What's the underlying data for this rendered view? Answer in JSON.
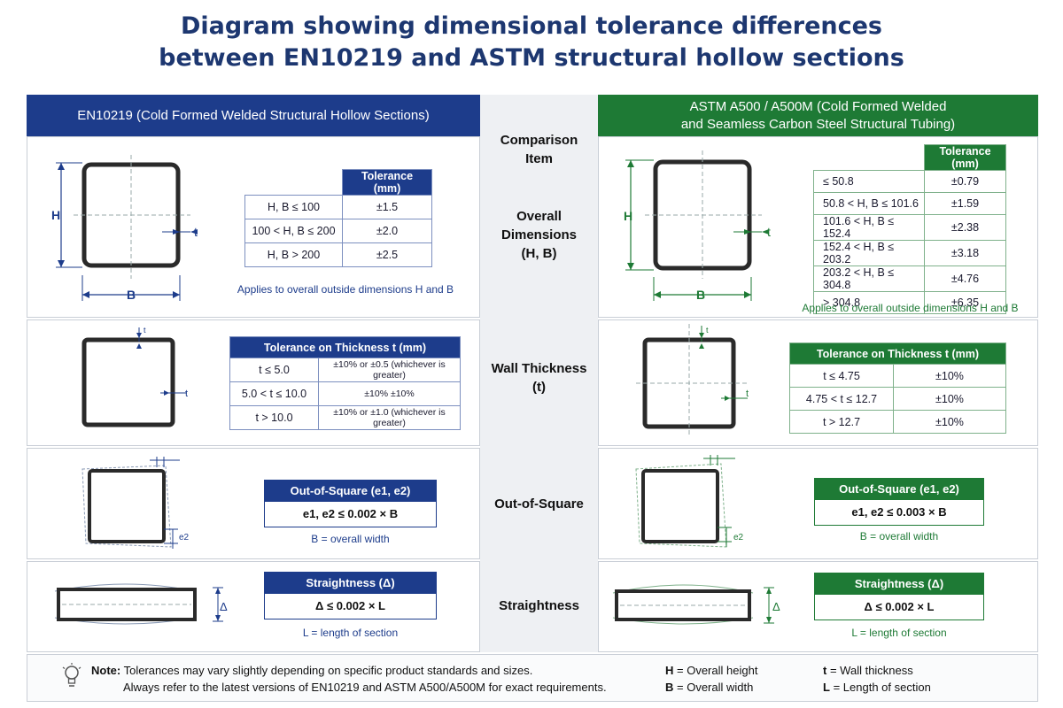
{
  "title": {
    "line1": "Diagram showing dimensional tolerance differences",
    "line2": "between EN10219 and ASTM structural hollow sections"
  },
  "headers": {
    "en": "EN10219 (Cold Formed Welded Structural Hollow Sections)",
    "astm_line1": "ASTM A500 / A500M (Cold Formed Welded",
    "astm_line2": "and Seamless Carbon Steel Structural Tubing)"
  },
  "middle": {
    "comparison_item_line1": "Comparison",
    "comparison_item_line2": "Item",
    "overall_line1": "Overall",
    "overall_line2": "Dimensions",
    "overall_line3": "(H, B)",
    "wall_line1": "Wall Thickness",
    "wall_line2": "(t)",
    "out_of_square": "Out-of-Square",
    "straightness": "Straightness"
  },
  "figure_labels": {
    "H": "H",
    "B": "B",
    "t": "t",
    "e2": "e2",
    "delta": "Δ"
  },
  "en_overall": {
    "header": "Tolerance (mm)",
    "rows": [
      {
        "range": "H, B ≤ 100",
        "tol": "±1.5"
      },
      {
        "range": "100 < H, B ≤ 200",
        "tol": "±2.0"
      },
      {
        "range": "H, B > 200",
        "tol": "±2.5"
      }
    ],
    "caption": "Applies to overall outside dimensions H and B"
  },
  "astm_overall": {
    "header": "Tolerance (mm)",
    "rows": [
      {
        "range": "≤ 50.8",
        "tol": "±0.79"
      },
      {
        "range": "50.8 < H, B ≤ 101.6",
        "tol": "±1.59"
      },
      {
        "range": "101.6 < H, B ≤ 152.4",
        "tol": "±2.38"
      },
      {
        "range": "152.4 < H, B ≤ 203.2",
        "tol": "±3.18"
      },
      {
        "range": "203.2 < H, B ≤ 304.8",
        "tol": "±4.76"
      },
      {
        "range": "> 304.8",
        "tol": "±6.35"
      }
    ],
    "caption": "Applies to overall outside dimensions H and B"
  },
  "en_wall": {
    "header": "Tolerance on Thickness t (mm)",
    "rows": [
      {
        "range": "t ≤ 5.0",
        "tol": "±10% or ±0.5 (whichever is greater)"
      },
      {
        "range": "5.0 < t ≤ 10.0",
        "tol": "±10%   ±10%"
      },
      {
        "range": "t > 10.0",
        "tol": "±10% or ±1.0 (whichever is greater)"
      }
    ]
  },
  "astm_wall": {
    "header": "Tolerance on Thickness t (mm)",
    "rows": [
      {
        "range": "t ≤ 4.75",
        "tol": "±10%"
      },
      {
        "range": "4.75 < t ≤ 12.7",
        "tol": "±10%"
      },
      {
        "range": "t > 12.7",
        "tol": "±10%"
      }
    ]
  },
  "en_square": {
    "header": "Out-of-Square (e1, e2)",
    "value": "e1, e2 ≤ 0.002 × B",
    "caption": "B = overall width"
  },
  "astm_square": {
    "header": "Out-of-Square (e1, e2)",
    "value": "e1, e2 ≤ 0.003 × B",
    "caption": "B = overall width"
  },
  "en_straight": {
    "header": "Straightness (Δ)",
    "value": "Δ ≤ 0.002 × L",
    "caption": "L = length of section"
  },
  "astm_straight": {
    "header": "Straightness (Δ)",
    "value": "Δ ≤ 0.002 × L",
    "caption": "L = length of section"
  },
  "note": {
    "label": "Note:",
    "line1": "Tolerances may vary slightly depending on specific product standards and sizes.",
    "line2": "Always refer to the latest versions of EN10219 and ASTM A500/A500M for exact requirements.",
    "icon": "lightbulb-icon"
  },
  "legend": {
    "H": "H",
    "H_text": "= Overall height",
    "B": "B",
    "B_text": "= Overall width",
    "t": "t",
    "t_text": "= Wall thickness",
    "L": "L",
    "L_text": "= Length of section"
  },
  "colors": {
    "en": "#1d3c8b",
    "astm": "#1e7a35",
    "title": "#1d3770"
  }
}
